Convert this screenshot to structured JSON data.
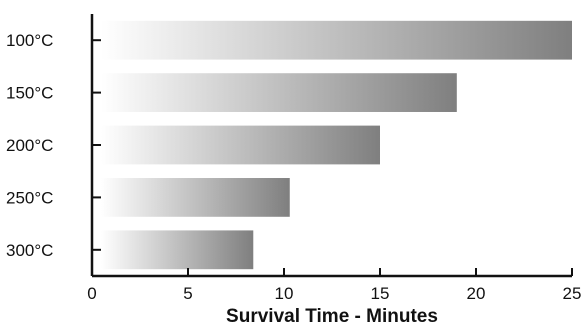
{
  "chart_data": {
    "type": "bar",
    "orientation": "horizontal",
    "categories": [
      "100°C",
      "150°C",
      "200°C",
      "250°C",
      "300°C"
    ],
    "values": [
      25,
      19,
      15,
      10.3,
      8.4
    ],
    "xlabel": "Survival Time - Minutes",
    "ylabel": "",
    "xlim": [
      0,
      25
    ],
    "xticks": [
      0,
      5,
      10,
      15,
      20,
      25
    ],
    "grid": false,
    "bar_fill": {
      "start": "#ffffff",
      "end": "#7f7f7f"
    }
  }
}
